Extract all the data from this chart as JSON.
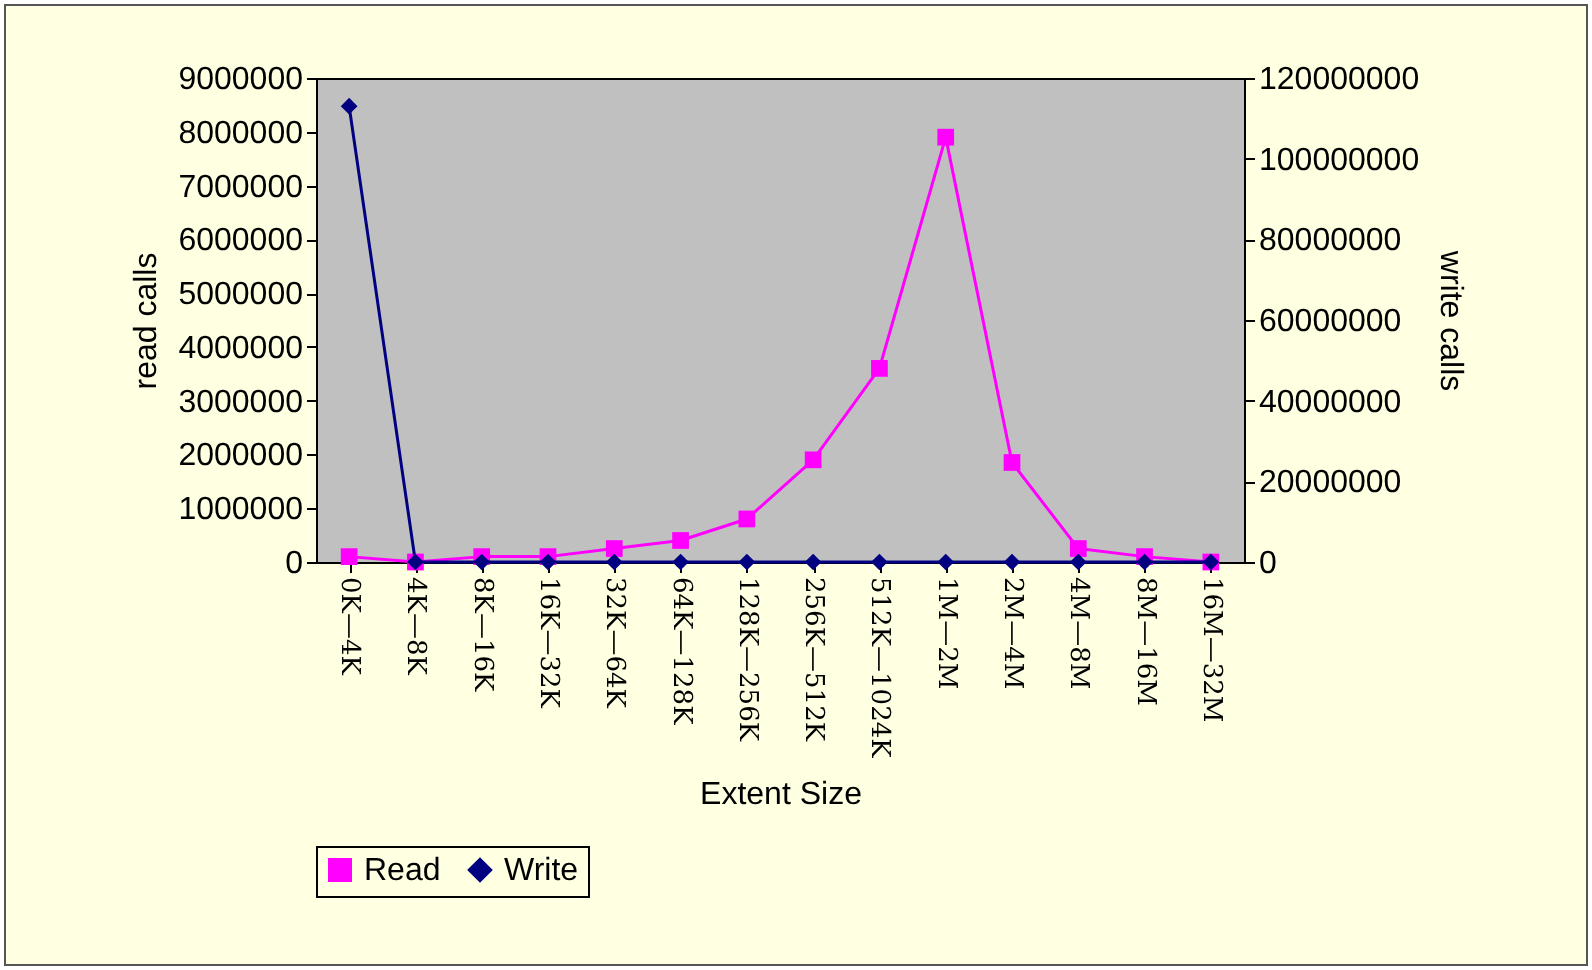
{
  "chart_data": {
    "type": "line",
    "xlabel": "Extent Size",
    "ylabel": "read calls",
    "y2label": "write calls",
    "categories": [
      "0K—4K",
      "4K—8K",
      "8K—16K",
      "16K—32K",
      "32K—64K",
      "64K—128K",
      "128K—256K",
      "256K—512K",
      "512K—1024K",
      "1M—2M",
      "2M—4M",
      "4M—8M",
      "8M—16M",
      "16M—32M"
    ],
    "series": [
      {
        "name": "Read",
        "color": "#ff00ff",
        "marker": "square",
        "values": [
          100000,
          0,
          100000,
          100000,
          250000,
          400000,
          800000,
          1900000,
          3600000,
          7900000,
          1850000,
          250000,
          100000,
          0
        ]
      },
      {
        "name": "Write",
        "color": "#000080",
        "marker": "diamond",
        "axis": "y2",
        "values": [
          113000000,
          0,
          0,
          0,
          0,
          0,
          0,
          0,
          0,
          0,
          0,
          0,
          0,
          0
        ]
      }
    ],
    "ylim": [
      0,
      9000000
    ],
    "yticks": [
      0,
      1000000,
      2000000,
      3000000,
      4000000,
      5000000,
      6000000,
      7000000,
      8000000,
      9000000
    ],
    "y2lim": [
      0,
      120000000
    ],
    "y2ticks": [
      0,
      20000000,
      40000000,
      60000000,
      80000000,
      100000000,
      120000000
    ],
    "grid": false,
    "legend": "bottom"
  }
}
